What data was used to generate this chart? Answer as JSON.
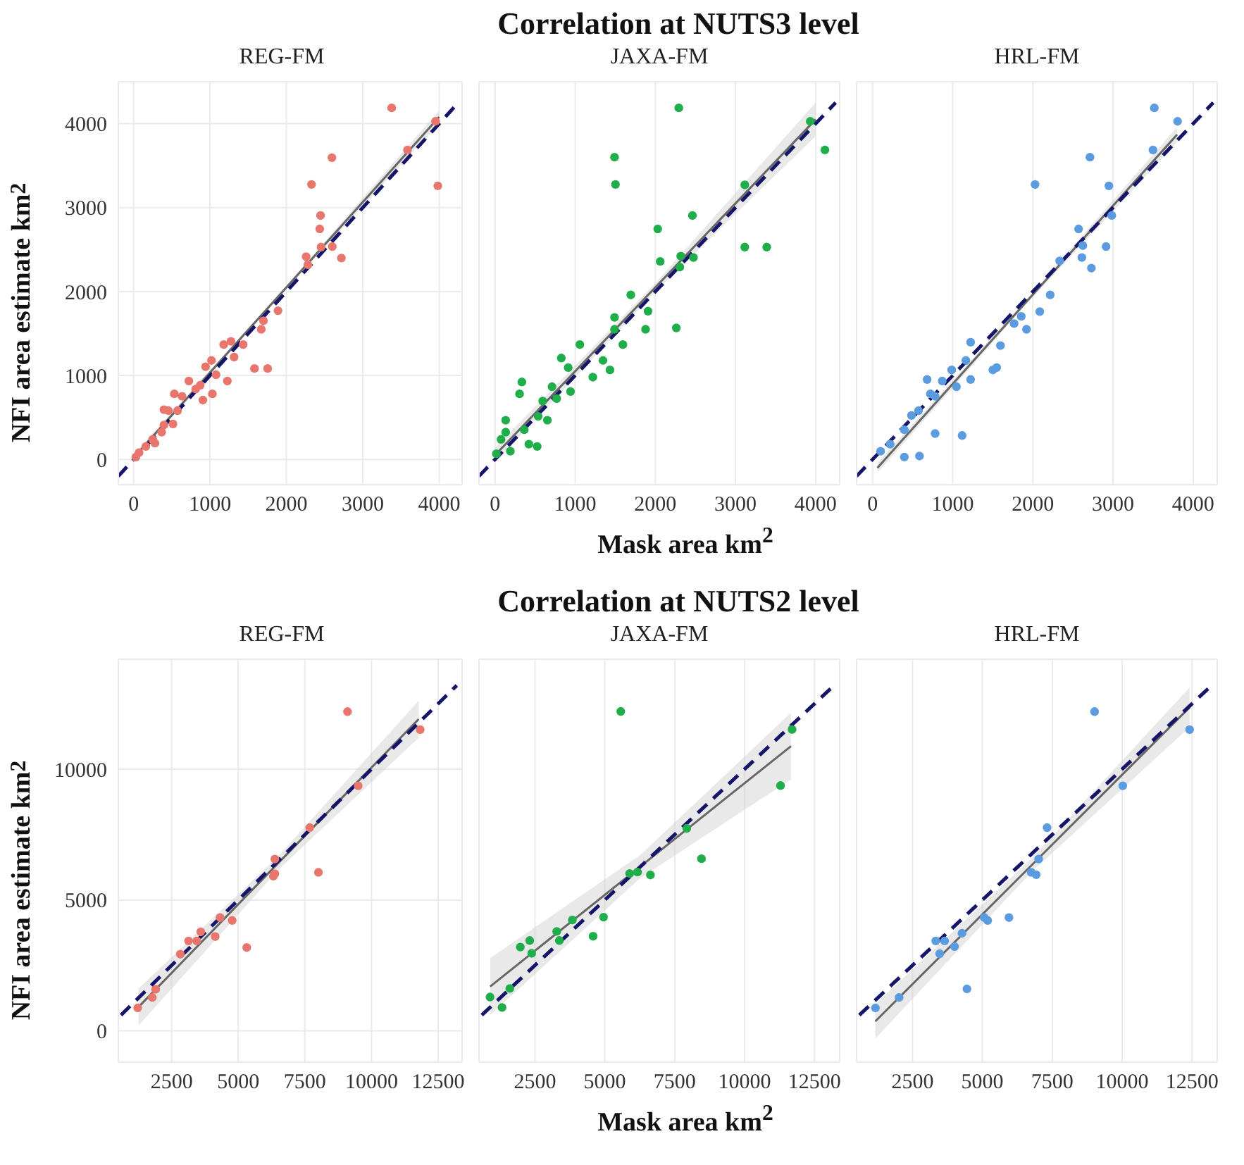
{
  "chart_data": [
    {
      "type": "scatter",
      "title": "REG-FM",
      "ylabel": "NFI area estimate km$^{2}$",
      "xlim": [
        -200,
        4300
      ],
      "ylim": [
        -300,
        4500
      ],
      "xticks": [
        0,
        1000,
        2000,
        3000,
        4000
      ],
      "yticks": [
        0,
        1000,
        2000,
        3000,
        4000
      ],
      "grid": true,
      "series": [
        {
          "marker": "circle",
          "color": "#e8766d",
          "x": [
            3378,
            3953,
            3585,
            3982,
            2596,
            2329,
            2447,
            2436,
            2453,
            2601,
            2720,
            2258,
            2281,
            1890,
            1700,
            1671,
            1582,
            1754,
            1434,
            1274,
            1179,
            1315,
            1227,
            1019,
            942,
            1079,
            1031,
            871,
            907,
            723,
            634,
            533,
            456,
            397,
            515,
            367,
            249,
            160,
            71,
            30,
            279,
            575,
            812,
            397
          ],
          "values": [
            4188,
            4028,
            3687,
            3259,
            3595,
            3276,
            2906,
            2746,
            2530,
            2536,
            2399,
            2416,
            2319,
            1772,
            1652,
            1550,
            1083,
            1083,
            1368,
            1407,
            1368,
            1219,
            934,
            1179,
            1105,
            1009,
            781,
            883,
            707,
            934,
            752,
            781,
            581,
            593,
            422,
            325,
            239,
            154,
            80,
            28,
            194,
            581,
            838,
            410
          ]
        },
        {
          "type": "line",
          "color": "#666666",
          "x": [
            0,
            2000,
            4000
          ],
          "values": [
            20,
            2050,
            4080
          ],
          "lower": [
            -20,
            2030,
            4000
          ],
          "upper": [
            60,
            2070,
            4160
          ]
        },
        {
          "type": "line",
          "color": "#14146b",
          "line_style": "dashed",
          "x": [
            -200,
            4250
          ],
          "values": [
            -200,
            4250
          ]
        }
      ]
    },
    {
      "type": "scatter",
      "title": "JAXA-FM",
      "xlabel": "Mask area km$^{2}$",
      "annotations": [
        "Correlation at NUTS3 level"
      ],
      "tick_labels": "x",
      "xlim": [
        -200,
        4300
      ],
      "ylim": [
        -300,
        4500
      ],
      "xticks": [
        0,
        1000,
        2000,
        3000,
        4000
      ],
      "yticks": [
        0,
        1000,
        2000,
        3000,
        4000
      ],
      "grid": true,
      "series": [
        {
          "marker": "circle",
          "color": "#1fae4a",
          "x": [
            1491,
            1503,
            1694,
            1491,
            1491,
            1595,
            1058,
            1220,
            1347,
            1434,
            827,
            913,
            711,
            595,
            769,
            538,
            335,
            306,
            133,
            422,
            526,
            75,
            17,
            191,
            364,
            653,
            942,
            133,
            2293,
            3933,
            4116,
            3116,
            2463,
            2030,
            2061,
            2317,
            2305,
            2476,
            3116,
            3390,
            2262,
            1878,
            1909
          ],
          "values": [
            3601,
            3276,
            1960,
            1692,
            1550,
            1368,
            1368,
            980,
            1179,
            1066,
            1208,
            1094,
            866,
            695,
            724,
            513,
            923,
            781,
            467,
            182,
            154,
            239,
            68,
            97,
            353,
            467,
            809,
            325,
            4188,
            4028,
            3687,
            3271,
            2906,
            2746,
            2359,
            2422,
            2291,
            2405,
            2530,
            2530,
            1567,
            1550,
            1766
          ]
        },
        {
          "type": "line",
          "color": "#666666",
          "x": [
            0,
            2000,
            4000
          ],
          "values": [
            50,
            2050,
            4050
          ],
          "lower": [
            -40,
            2000,
            3850
          ],
          "upper": [
            140,
            2100,
            4250
          ]
        },
        {
          "type": "line",
          "color": "#14146b",
          "line_style": "dashed",
          "x": [
            -200,
            4250
          ],
          "values": [
            -200,
            4250
          ]
        }
      ]
    },
    {
      "type": "scatter",
      "title": "HRL-FM",
      "tick_labels": "x",
      "xlim": [
        -200,
        4300
      ],
      "ylim": [
        -300,
        4500
      ],
      "xticks": [
        0,
        1000,
        2000,
        3000,
        4000
      ],
      "yticks": [
        0,
        1000,
        2000,
        3000,
        4000
      ],
      "grid": true,
      "series": [
        {
          "marker": "circle",
          "color": "#5b9be0",
          "x": [
            3515,
            3805,
            3498,
            2712,
            2027,
            2948,
            2984,
            2570,
            2623,
            2611,
            2730,
            2913,
            2334,
            2216,
            2086,
            1920,
            1855,
            1766,
            1595,
            1548,
            1501,
            1223,
            1164,
            1117,
            987,
            869,
            780,
            721,
            680,
            573,
            485,
            396,
            585,
            396,
            219,
            100,
            780,
            1046,
            1223
          ],
          "values": [
            4188,
            4028,
            3687,
            3601,
            3276,
            3259,
            2906,
            2746,
            2547,
            2405,
            2279,
            2536,
            2365,
            1960,
            1761,
            1550,
            1704,
            1618,
            1356,
            1094,
            1066,
            1396,
            1179,
            285,
            1066,
            934,
            752,
            781,
            952,
            581,
            524,
            353,
            40,
            28,
            182,
            97,
            308,
            866,
            952
          ]
        },
        {
          "type": "line",
          "color": "#666666",
          "x": [
            60,
            1930,
            3800
          ],
          "values": [
            -100,
            1890,
            3870
          ],
          "lower": [
            -160,
            1860,
            3780
          ],
          "upper": [
            -40,
            1920,
            3960
          ]
        },
        {
          "type": "line",
          "color": "#14146b",
          "line_style": "dashed",
          "x": [
            -200,
            4250
          ],
          "values": [
            -200,
            4250
          ]
        }
      ]
    },
    {
      "type": "scatter",
      "title": "REG-FM",
      "ylabel": "NFI area estimate km$^{2}$",
      "xlim": [
        500,
        13400
      ],
      "ylim": [
        -1200,
        14200
      ],
      "xticks": [
        2500,
        5000,
        7500,
        10000,
        12500
      ],
      "yticks": [
        0,
        5000,
        10000
      ],
      "grid": true,
      "series": [
        {
          "marker": "circle",
          "color": "#e8766d",
          "x": [
            9100,
            11827,
            9500,
            7682,
            8009,
            6373,
            6373,
            6318,
            5318,
            4773,
            4318,
            4136,
            3591,
            3136,
            3445,
            2827,
            1900,
            1773,
            1227
          ],
          "values": [
            12200,
            11509,
            9364,
            7764,
            6055,
            6564,
            6000,
            5909,
            3182,
            4218,
            4327,
            3600,
            3782,
            3436,
            3436,
            2927,
            1582,
            1273,
            873
          ]
        },
        {
          "type": "line",
          "color": "#666666",
          "x": [
            1260,
            6500,
            11770
          ],
          "values": [
            910,
            6410,
            11910
          ],
          "lower": [
            200,
            6150,
            11200
          ],
          "upper": [
            1620,
            6670,
            12620
          ]
        },
        {
          "type": "line",
          "color": "#14146b",
          "line_style": "dashed",
          "x": [
            600,
            13200
          ],
          "values": [
            600,
            13200
          ]
        }
      ]
    },
    {
      "type": "scatter",
      "title": "JAXA-FM",
      "xlabel": "Mask area km$^{2}$",
      "annotations": [
        "Correlation at NUTS2 level"
      ],
      "tick_labels": "x",
      "xlim": [
        500,
        13400
      ],
      "ylim": [
        -1200,
        14200
      ],
      "xticks": [
        2500,
        5000,
        7500,
        10000,
        12500
      ],
      "yticks": [
        0,
        5000,
        10000
      ],
      "grid": true,
      "series": [
        {
          "marker": "circle",
          "color": "#1fae4a",
          "x": [
            5570,
            894,
            1324,
            1603,
            1978,
            2313,
            2385,
            3279,
            3374,
            3838,
            4581,
            4955,
            11698,
            11285,
            7933,
            8458,
            6631,
            6168,
            5888
          ],
          "values": [
            12207,
            1290,
            890,
            1617,
            3198,
            3450,
            2960,
            3798,
            3450,
            4234,
            3613,
            4343,
            11515,
            9373,
            7738,
            6577,
            5956,
            6065,
            6011
          ]
        },
        {
          "type": "line",
          "color": "#666666",
          "x": [
            900,
            6280,
            11660
          ],
          "values": [
            1690,
            6290,
            10880
          ],
          "lower": [
            600,
            5850,
            9600
          ],
          "upper": [
            2780,
            6730,
            12160
          ]
        },
        {
          "type": "line",
          "color": "#14146b",
          "line_style": "dashed",
          "x": [
            600,
            13200
          ],
          "values": [
            600,
            13200
          ]
        }
      ]
    },
    {
      "type": "scatter",
      "title": "HRL-FM",
      "tick_labels": "x",
      "xlim": [
        500,
        13400
      ],
      "ylim": [
        -1200,
        14200
      ],
      "xticks": [
        2500,
        5000,
        7500,
        10000,
        12500
      ],
      "yticks": [
        0,
        5000,
        10000
      ],
      "grid": true,
      "series": [
        {
          "marker": "circle",
          "color": "#5b9be0",
          "x": [
            9013,
            12412,
            10022,
            7314,
            7013,
            6748,
            6925,
            5951,
            5066,
            5190,
            4447,
            4004,
            4270,
            3650,
            3332,
            3473,
            2022,
            1173
          ],
          "values": [
            12200,
            11509,
            9364,
            7764,
            6564,
            6055,
            5964,
            4327,
            4327,
            4218,
            1600,
            3218,
            3727,
            3436,
            3436,
            2945,
            1273,
            873
          ]
        },
        {
          "type": "line",
          "color": "#666666",
          "x": [
            1170,
            6790,
            12410
          ],
          "values": [
            360,
            6360,
            12360
          ],
          "lower": [
            -300,
            6100,
            11600
          ],
          "upper": [
            1020,
            6620,
            13120
          ]
        },
        {
          "type": "line",
          "color": "#14146b",
          "line_style": "dashed",
          "x": [
            600,
            13200
          ],
          "values": [
            600,
            13200
          ]
        }
      ]
    }
  ]
}
